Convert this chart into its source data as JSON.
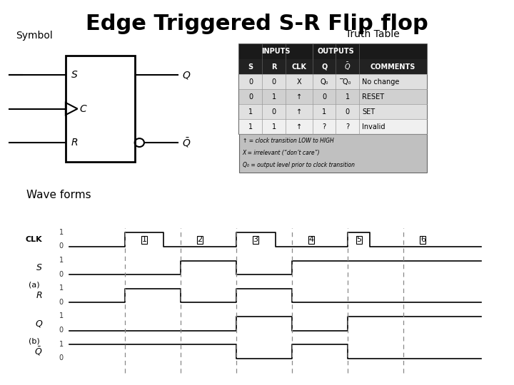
{
  "title": "Edge Triggered S-R Flip flop",
  "title_fontsize": 22,
  "title_fontweight": "bold",
  "symbol_label": "Symbol",
  "truth_table_label": "Truth Table",
  "wave_forms_label": "Wave forms",
  "background_color": "#ffffff",
  "period_labels": [
    "1",
    "2",
    "3",
    "4",
    "5",
    "6"
  ],
  "truth_table": {
    "rows": [
      [
        "0",
        "0",
        "X",
        "Q₀",
        "̅Q₀",
        "No change"
      ],
      [
        "0",
        "1",
        "↑",
        "0",
        "1",
        "RESET"
      ],
      [
        "1",
        "0",
        "↑",
        "1",
        "0",
        "SET"
      ],
      [
        "1",
        "1",
        "↑",
        "?",
        "?",
        "Invalid"
      ]
    ],
    "footnotes": [
      "↑ = clock transition LOW to HIGH",
      "X = irrelevant (“don’t care”)",
      "Q₀ = output level prior to clock transition"
    ]
  }
}
